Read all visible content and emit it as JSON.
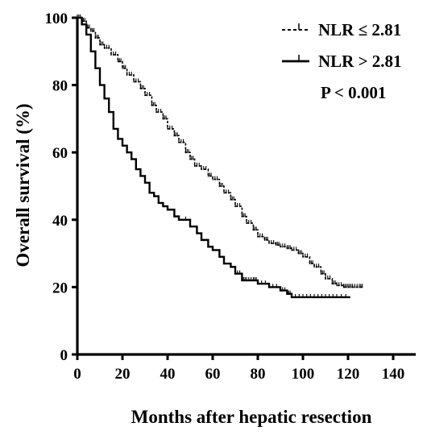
{
  "chart_data": {
    "type": "line",
    "title": "",
    "xlabel": "Months after hepatic resection",
    "ylabel": "Overall survival (%)",
    "xlim": [
      0,
      150
    ],
    "ylim": [
      0,
      100
    ],
    "xticks": [
      0,
      20,
      40,
      60,
      80,
      100,
      120,
      140
    ],
    "yticks": [
      0,
      20,
      40,
      60,
      80,
      100
    ],
    "grid": false,
    "legend_position": "top-right",
    "annotation": "P < 0.001",
    "series": [
      {
        "name": "NLR ≤ 2.81",
        "style": "dashed-step",
        "x": [
          0,
          2,
          4,
          6,
          8,
          10,
          12,
          15,
          18,
          20,
          22,
          25,
          28,
          30,
          33,
          35,
          38,
          40,
          43,
          45,
          48,
          50,
          52,
          55,
          58,
          60,
          63,
          65,
          68,
          70,
          73,
          75,
          78,
          80,
          83,
          85,
          88,
          90,
          93,
          95,
          98,
          100,
          103,
          105,
          108,
          110,
          113,
          115,
          118,
          120,
          122,
          125,
          127
        ],
        "y": [
          100,
          99,
          97,
          96,
          94,
          92,
          91,
          89,
          87,
          85,
          83,
          81,
          79,
          77,
          74,
          72,
          70,
          67,
          65,
          63,
          60,
          58,
          56,
          55,
          53,
          52,
          50,
          48,
          46,
          44,
          41,
          39,
          37,
          35,
          34,
          33,
          32.5,
          32,
          31.5,
          31,
          30,
          29,
          27,
          26,
          24,
          22.5,
          21,
          20.5,
          20,
          20,
          20,
          20,
          20
        ]
      },
      {
        "name": "NLR > 2.81",
        "style": "solid-step",
        "x": [
          0,
          2,
          4,
          6,
          8,
          10,
          12,
          14,
          16,
          18,
          20,
          22,
          24,
          26,
          28,
          30,
          32,
          34,
          36,
          38,
          40,
          43,
          45,
          48,
          50,
          53,
          55,
          58,
          60,
          63,
          65,
          68,
          70,
          73,
          75,
          78,
          80,
          85,
          90,
          93,
          95,
          100,
          105,
          110,
          115,
          121
        ],
        "y": [
          100,
          98,
          95,
          90,
          85,
          80,
          76,
          72,
          67,
          64,
          62,
          60,
          58,
          55,
          53,
          51,
          48,
          47,
          45,
          44,
          43,
          41,
          40,
          40,
          38,
          36,
          34,
          32,
          31,
          29,
          27,
          26,
          24,
          22,
          22,
          22,
          21,
          20,
          19,
          18,
          17,
          17,
          17,
          17,
          17,
          17
        ]
      }
    ]
  }
}
